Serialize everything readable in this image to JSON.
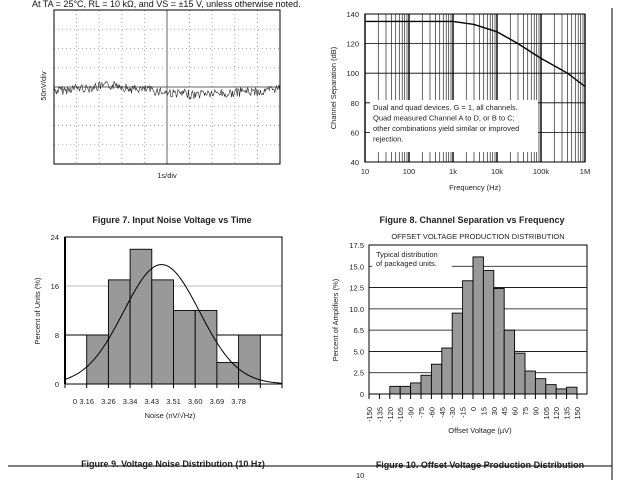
{
  "header_note": "At TA = 25°C, RL = 10 kΩ, and VS = ±15 V, unless otherwise noted.",
  "chart_data": [
    {
      "type": "line",
      "caption": "Figure 7. Input Noise Voltage vs Time",
      "xlabel": "1s/div",
      "ylabel": "50nV/div",
      "grid": "dotted 10x8",
      "series": [
        {
          "name": "noise",
          "description_values": "random noise trace around center"
        }
      ]
    },
    {
      "type": "line",
      "caption": "Figure 8. Channel Separation vs Frequency",
      "xlabel": "Frequency (Hz)",
      "ylabel": "Channel Separation (dB)",
      "xscale": "log",
      "xlim": [
        10,
        1000000
      ],
      "ylim": [
        40,
        140
      ],
      "xticks": [
        "10",
        "100",
        "1k",
        "10k",
        "100k",
        "1M"
      ],
      "yticks": [
        "40",
        "60",
        "80",
        "100",
        "120",
        "140"
      ],
      "annotation": [
        "Dual and quad devices. G = 1, all channels.",
        "Quad measured Channel A to D, or B to C;",
        "other combinations yield similar or improved",
        "rejection."
      ],
      "series": [
        {
          "name": "separation",
          "x": [
            10,
            100,
            1000,
            3000,
            10000,
            30000,
            100000,
            400000,
            1000000
          ],
          "y": [
            135,
            135,
            135,
            133,
            128,
            120,
            110,
            100,
            91
          ]
        }
      ]
    },
    {
      "type": "bar",
      "caption": "Figure 9. Voltage Noise Distribution (10 Hz)",
      "xlabel": "Noise (nV/√Hz)",
      "ylabel": "Percent of Units (%)",
      "ylim": [
        0,
        24
      ],
      "yticks": [
        "0",
        "8",
        "16",
        "24"
      ],
      "xticks": [
        "0",
        "3.16",
        "3.26",
        "3.34",
        "3.43",
        "3.51",
        "3.60",
        "3.69",
        "3.78"
      ],
      "bins": [
        "3.16",
        "3.26",
        "3.34",
        "3.43",
        "3.51",
        "3.60",
        "3.69",
        "3.78"
      ],
      "values": [
        8,
        17,
        22,
        17,
        12,
        12,
        3.5,
        8
      ],
      "fit": "normal curve, peak ~19.5"
    },
    {
      "type": "bar",
      "title": "OFFSET VOLTAGE PRODUCTION DISTRIBUTION",
      "caption": "Figure 10. Offset Voltage Production Distribution",
      "xlabel": "Offset Voltage (µV)",
      "ylabel": "Percent of Amplifiers (%)",
      "ylim": [
        0,
        17.5
      ],
      "yticks": [
        "0",
        "2.5",
        "5.0",
        "6.5",
        "10.0",
        "12.5",
        "15.0",
        "17.5"
      ],
      "xticks": [
        "-150",
        "-135",
        "-120",
        "-105",
        "-90",
        "-75",
        "-60",
        "-45",
        "-30",
        "-15",
        "0",
        "15",
        "30",
        "45",
        "60",
        "75",
        "90",
        "105",
        "120",
        "135",
        "150"
      ],
      "annotation": [
        "Typical distribution",
        "of packaged units."
      ],
      "values": [
        0.9,
        0.9,
        1.3,
        2.2,
        3.5,
        5.4,
        9.5,
        13.3,
        16.1,
        14.5,
        12.4,
        7.5,
        4.8,
        2.7,
        1.8,
        1.1,
        0.6,
        0.8
      ]
    }
  ],
  "footer_page_fragment": "10"
}
